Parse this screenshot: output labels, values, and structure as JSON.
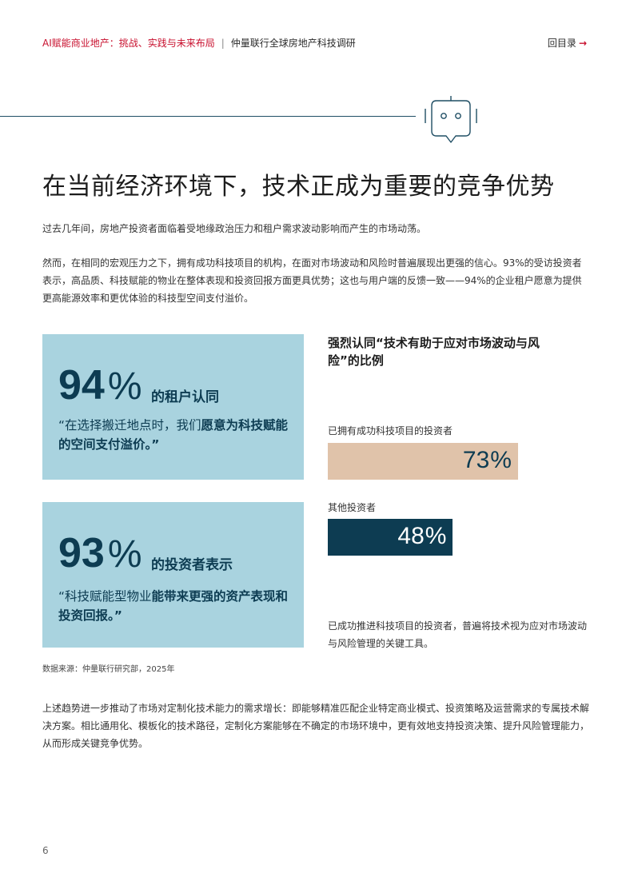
{
  "header": {
    "report_title": "AI赋能商业地产：挑战、实践与未来布局",
    "separator": "|",
    "survey_title": "仲量联行全球房地产科技调研",
    "back_label": "回目录",
    "back_arrow": "→"
  },
  "main": {
    "title": "在当前经济环境下，技术正成为重要的竞争优势",
    "paragraph1": "过去几年间，房地产投资者面临着受地缘政治压力和租户需求波动影响而产生的市场动荡。",
    "paragraph2": "然而，在相同的宏观压力之下，拥有成功科技项目的机构，在面对市场波动和风险时普遍展现出更强的信心。93%的受访投资者表示，高品质、科技赋能的物业在整体表现和投资回报方面更具优势；这也与用户端的反馈一致——94%的企业租户愿意为提供更高能源效率和更优体验的科技型空间支付溢价。",
    "paragraph3": "上述趋势进一步推动了市场对定制化技术能力的需求增长：即能够精准匹配企业特定商业模式、投资策略及运营需求的专属技术解决方案。相比通用化、模板化的技术路径，定制化方案能够在不确定的市场环境中，更有效地支持投资决策、提升风险管理能力，从而形成关键竞争优势。",
    "source": "数据来源：仲量联行研究部，2025年",
    "page_number": "6"
  },
  "stats": [
    {
      "number": "94",
      "percent": "%",
      "label": "的租户认同",
      "quote_plain": "“在选择搬迁地点时，我们",
      "quote_bold": "愿意为科技赋能的空间支付溢价。”"
    },
    {
      "number": "93",
      "percent": "%",
      "label": "的投资者表示",
      "quote_plain": "“科技赋能型物业",
      "quote_bold": "能带来更强的资产表现和投资回报。”"
    }
  ],
  "chart_data": {
    "type": "bar",
    "title": "强烈认同“技术有助于应对市场波动与风险”的比例",
    "categories": [
      "已拥有成功科技项目的投资者",
      "其他投资者"
    ],
    "values": [
      73,
      48
    ],
    "value_labels": [
      "73",
      "48"
    ],
    "unit": "%",
    "xlim": [
      0,
      100
    ],
    "colors": [
      "#e0c3aa",
      "#0d3c52"
    ],
    "label_colors": [
      "#0d3c52",
      "#ffffff"
    ],
    "note": "已成功推进科技项目的投资者，普遍将技术视为应对市场波动与风险管理的关键工具。"
  },
  "colors": {
    "accent_red": "#c8102e",
    "navy": "#0d3c52",
    "stat_box": "#a9d3df"
  },
  "icons": {
    "robot": "robot-chat-icon"
  }
}
